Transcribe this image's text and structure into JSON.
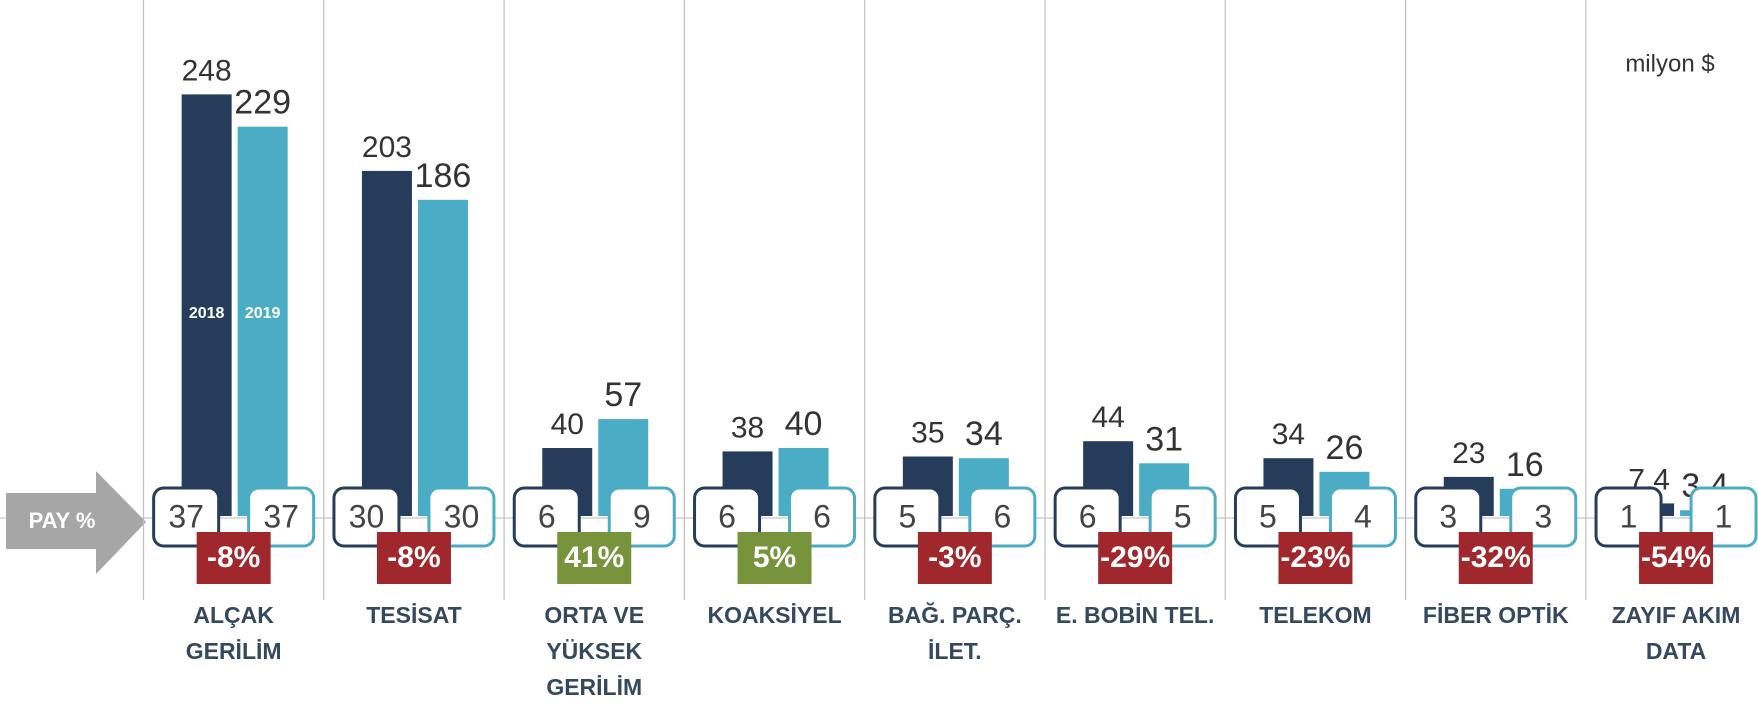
{
  "chart_data": {
    "type": "bar",
    "unit": "milyon $",
    "share_label": "PAY %",
    "categories": [
      [
        "ALÇAK",
        "GERİLİM"
      ],
      [
        "TESİSAT"
      ],
      [
        "ORTA VE",
        "YÜKSEK",
        "GERİLİM"
      ],
      [
        "KOAKSİYEL"
      ],
      [
        "BAĞ. PARÇ.",
        "İLET."
      ],
      [
        "E. BOBİN TEL."
      ],
      [
        "TELEKOM"
      ],
      [
        "FİBER OPTİK"
      ],
      [
        "ZAYIF AKIM",
        "DATA"
      ]
    ],
    "series": [
      {
        "name": "2018",
        "color": "#253d5b",
        "values": [
          248,
          203,
          40,
          38,
          35,
          44,
          34,
          23,
          7.4
        ],
        "value_labels": [
          "248",
          "203",
          "40",
          "38",
          "35",
          "44",
          "34",
          "23",
          "7,4"
        ],
        "share": [
          37,
          30,
          6,
          6,
          5,
          6,
          5,
          3,
          1
        ]
      },
      {
        "name": "2019",
        "color": "#4bacc6",
        "values": [
          229,
          186,
          57,
          40,
          34,
          31,
          26,
          16,
          3.4
        ],
        "value_labels": [
          "229",
          "186",
          "57",
          "40",
          "34",
          "31",
          "26",
          "16",
          "3,4"
        ],
        "share": [
          37,
          30,
          9,
          6,
          6,
          5,
          4,
          3,
          1
        ]
      }
    ],
    "change": {
      "values": [
        -8,
        -8,
        41,
        5,
        -3,
        -29,
        -23,
        -32,
        -54
      ],
      "value_labels": [
        "-8%",
        "-8%",
        "41%",
        "5%",
        "-3%",
        "-29%",
        "-23%",
        "-32%",
        "-54%"
      ],
      "positive_color": "#77933c",
      "negative_color": "#a0282d"
    }
  }
}
